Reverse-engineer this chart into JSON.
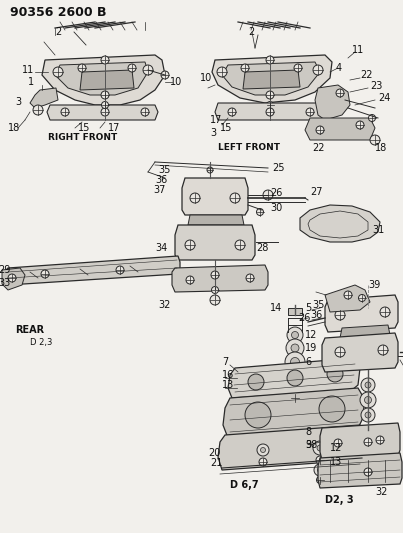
{
  "title": "90356 2600 B",
  "bg_color": "#f2f0ec",
  "line_color": "#2a2a2a",
  "text_color": "#111111",
  "figsize": [
    4.03,
    5.33
  ],
  "dpi": 100,
  "sections": {
    "right_front_label": "RIGHT FRONT",
    "left_front_label": "LEFT FRONT",
    "rear_label": "REAR",
    "d23_label": "D 2,3",
    "d67_label": "D 6,7",
    "d23_label2": "D2, 3"
  }
}
